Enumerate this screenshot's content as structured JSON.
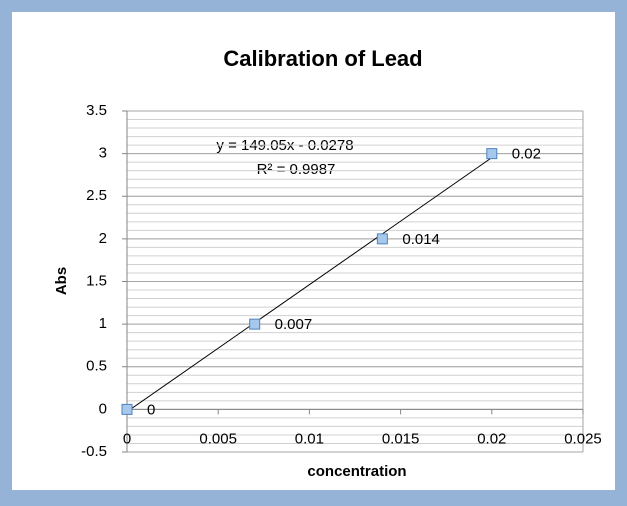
{
  "chart_data": {
    "type": "scatter",
    "title": "Calibration of Lead",
    "x_label": "concentration",
    "y_label": "Abs",
    "x": [
      0,
      0.007,
      0.014,
      0.02
    ],
    "values": [
      0,
      1,
      2,
      3
    ],
    "color": "#4f81bd",
    "marker_fill": "#a6c8ec",
    "xlim": [
      0,
      0.025
    ],
    "xticks": [
      0,
      0.005,
      0.01,
      0.015,
      0.02,
      0.025
    ],
    "ylim": [
      -0.5,
      3.5
    ],
    "yticks": [
      -0.5,
      0,
      0.5,
      1,
      1.5,
      2,
      2.5,
      3,
      3.5
    ],
    "grid": true,
    "minor_grid_step": 0.1,
    "trendline": {
      "slope": 149.05,
      "intercept": -0.0278,
      "equation": "y = 149.05x - 0.0278",
      "r2": "R² = 0.9987"
    }
  }
}
